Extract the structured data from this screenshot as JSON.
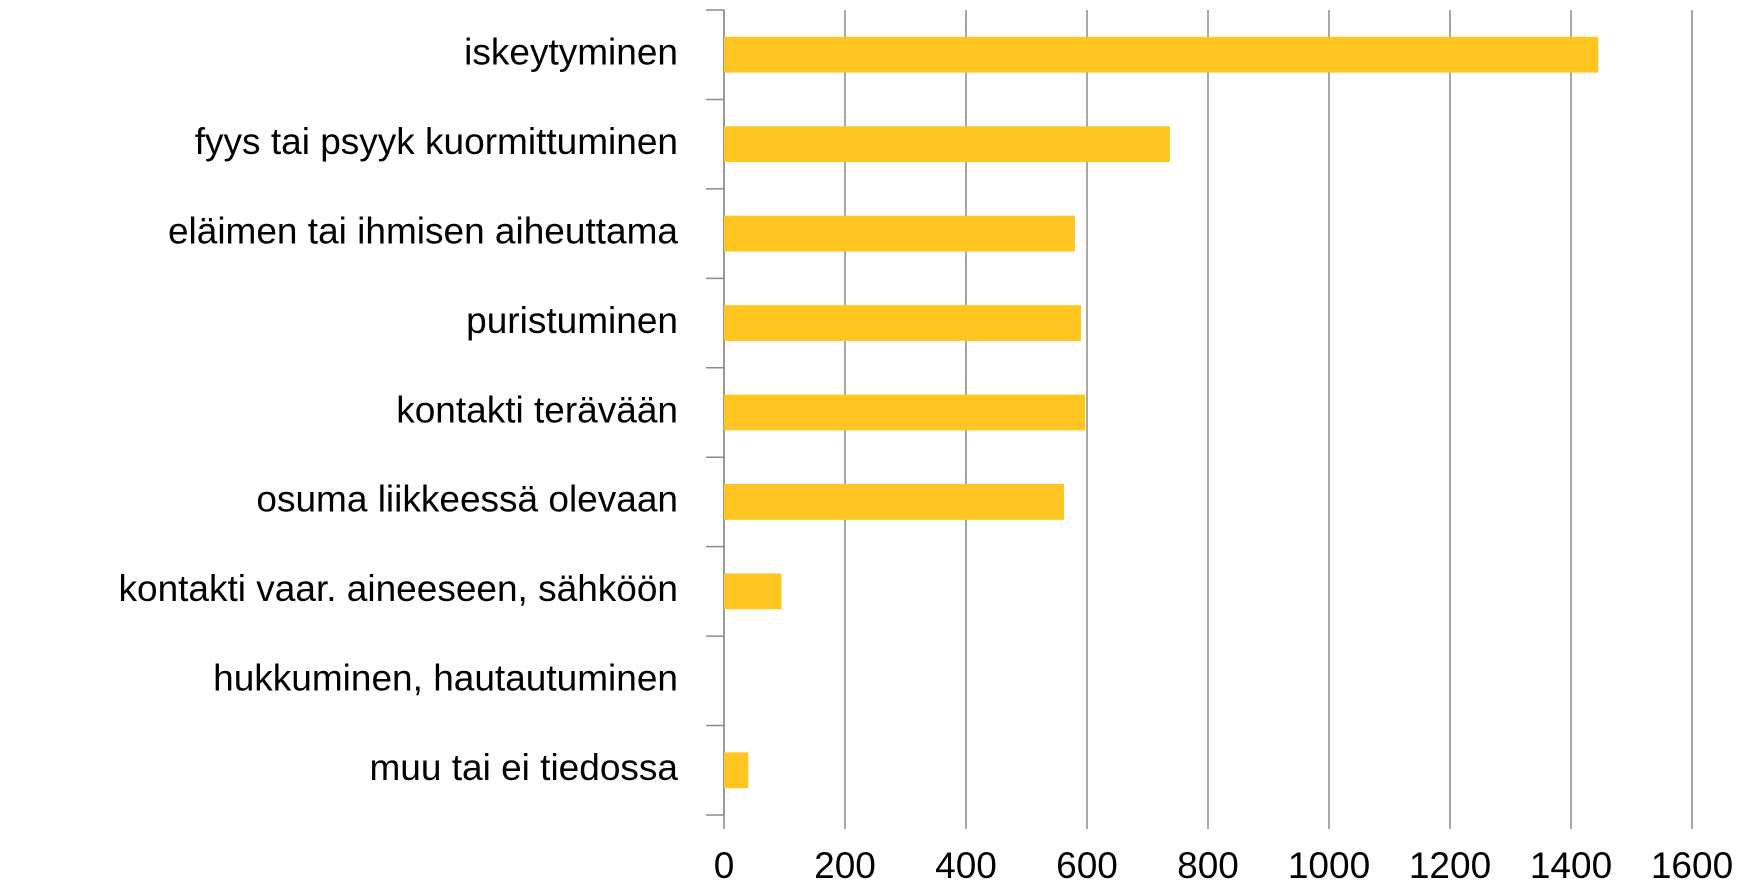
{
  "chart_data": {
    "type": "barh",
    "categories": [
      "iskeytyminen",
      "fyys tai psyyk kuormittuminen",
      "eläimen tai ihmisen aiheuttama",
      "puristuminen",
      "kontakti terävään",
      "osuma liikkeessä olevaan",
      "kontakti vaar. aineeseen, sähköön",
      "hukkuminen, hautautuminen",
      "muu tai ei tiedossa"
    ],
    "values": [
      1445,
      737,
      580,
      590,
      597,
      562,
      95,
      0,
      40
    ],
    "color": "#ffc520",
    "xlim": [
      0,
      1600
    ],
    "xticks": [
      0,
      200,
      400,
      600,
      800,
      1000,
      1200,
      1400,
      1600
    ],
    "grid": true
  }
}
